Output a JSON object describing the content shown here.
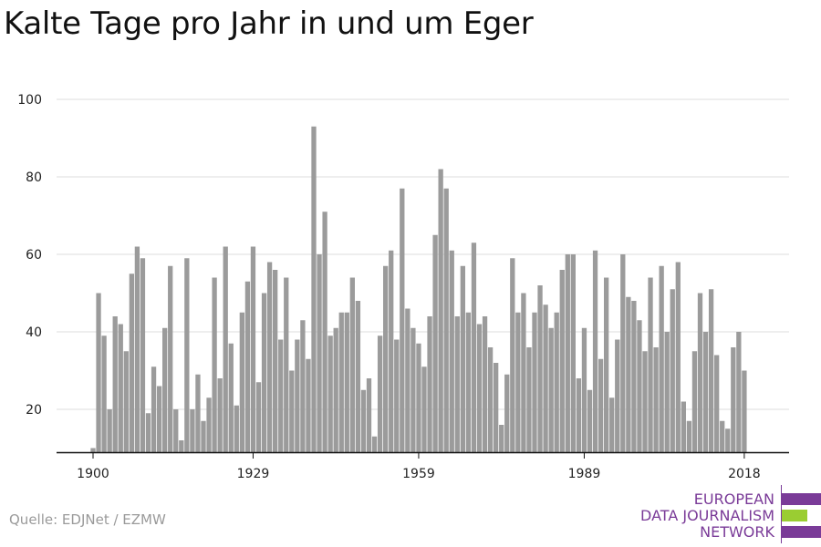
{
  "title": "Kalte Tage pro Jahr in und um Eger",
  "source": "Quelle: EDJNet / EZMW",
  "logo": {
    "lines": [
      "EUROPEAN",
      "DATA JOURNALISM",
      "NETWORK"
    ],
    "colors": [
      "#7a3b98",
      "#9acd32",
      "#7a3b98"
    ]
  },
  "chart_data": {
    "type": "bar",
    "x_start": 1900,
    "x_end": 2018,
    "x_ticks": [
      1900,
      1929,
      1959,
      1989,
      2018
    ],
    "y_ticks": [
      20,
      40,
      60,
      80,
      100
    ],
    "ylim": [
      9,
      100
    ],
    "bar_color": "#9b9b9b",
    "grid": true,
    "values": [
      10,
      50,
      39,
      20,
      44,
      42,
      35,
      55,
      62,
      59,
      19,
      31,
      26,
      41,
      57,
      20,
      12,
      59,
      20,
      29,
      17,
      23,
      54,
      28,
      62,
      37,
      21,
      45,
      53,
      62,
      27,
      50,
      58,
      56,
      38,
      54,
      30,
      38,
      43,
      33,
      93,
      60,
      71,
      39,
      41,
      45,
      45,
      54,
      48,
      25,
      28,
      13,
      39,
      57,
      61,
      38,
      77,
      46,
      41,
      37,
      31,
      44,
      65,
      82,
      77,
      61,
      44,
      57,
      45,
      63,
      42,
      44,
      36,
      32,
      16,
      29,
      59,
      45,
      50,
      36,
      45,
      52,
      47,
      41,
      45,
      56,
      60,
      60,
      28,
      41,
      25,
      61,
      33,
      54,
      23,
      38,
      60,
      49,
      48,
      43,
      35,
      54,
      36,
      57,
      40,
      51,
      58,
      22,
      17,
      35,
      50,
      40,
      51,
      34,
      17,
      15,
      36,
      40,
      30
    ]
  }
}
